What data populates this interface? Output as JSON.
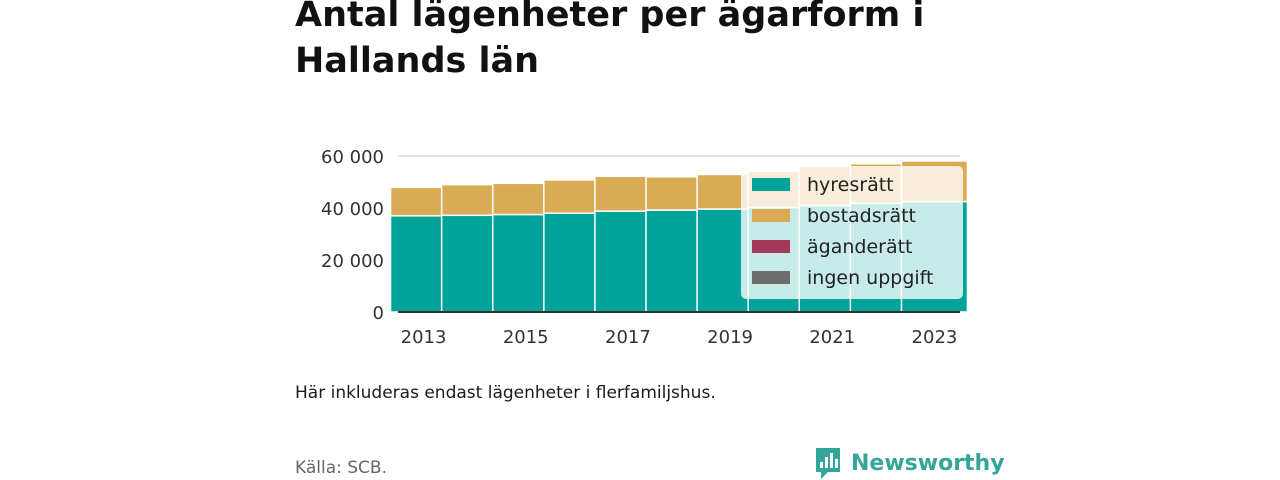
{
  "title": "Antal lägenheter per ägarform i Hallands län",
  "note": "Här inkluderas endast lägenheter i flerfamiljshus.",
  "source": "Källa: SCB.",
  "brand": {
    "name": "Newsworthy",
    "icon": "newsworthy-logo-icon",
    "color": "#35a49b"
  },
  "chart_data": {
    "type": "bar",
    "stacked": true,
    "categories": [
      "2013",
      "2014",
      "2015",
      "2016",
      "2017",
      "2018",
      "2019",
      "2020",
      "2021",
      "2022",
      "2023"
    ],
    "x_tick_labels": [
      "2013",
      "2015",
      "2017",
      "2019",
      "2021",
      "2023"
    ],
    "y_tick_labels": [
      "0",
      "20 000",
      "40 000",
      "60 000"
    ],
    "y_ticks": [
      0,
      20000,
      40000,
      60000
    ],
    "ylim": [
      0,
      60000
    ],
    "grid": true,
    "legend_position": "right",
    "series": [
      {
        "name": "hyresrätt",
        "color": "#00a39a",
        "values": [
          37000,
          37200,
          37500,
          38000,
          38800,
          39200,
          39600,
          40200,
          41000,
          41800,
          42500
        ]
      },
      {
        "name": "bostadsrätt",
        "color": "#d9ab55",
        "values": [
          11000,
          11800,
          12000,
          12800,
          13400,
          12800,
          13300,
          14000,
          15000,
          15200,
          15600
        ]
      },
      {
        "name": "äganderätt",
        "color": "#a2395b",
        "values": [
          0,
          0,
          0,
          0,
          0,
          0,
          0,
          0,
          0,
          0,
          0
        ]
      },
      {
        "name": "ingen uppgift",
        "color": "#6d6d6d",
        "values": [
          0,
          0,
          0,
          0,
          0,
          0,
          0,
          0,
          0,
          0,
          0
        ]
      }
    ]
  }
}
